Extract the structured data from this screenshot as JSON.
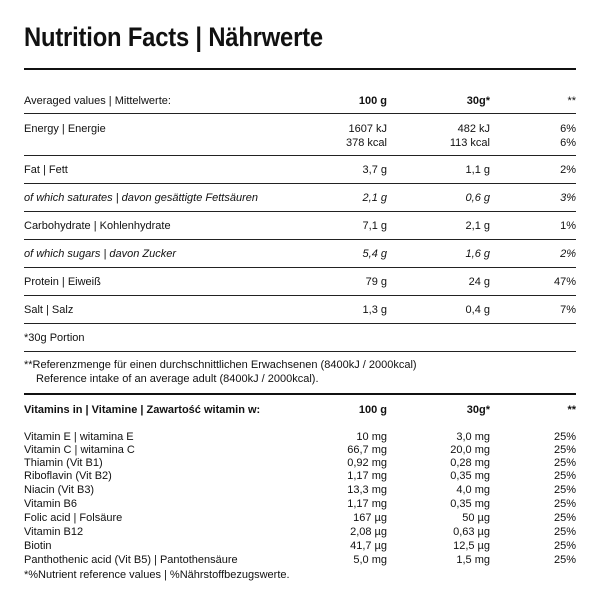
{
  "title": "Nutrition Facts | Nährwerte",
  "header": {
    "label": "Averaged values | Mittelwerte:",
    "col100": "100 g",
    "col30": "30g*",
    "colpct": "**"
  },
  "nutrients": [
    {
      "label": "Energy | Energie",
      "v100": "1607 kJ",
      "v100b": "378 kcal",
      "v30": "482 kJ",
      "v30b": "113 kcal",
      "pct": "6%",
      "pctb": "6%"
    },
    {
      "label": "Fat | Fett",
      "v100": "3,7 g",
      "v30": "1,1 g",
      "pct": "2%"
    },
    {
      "label": "of which saturates | davon gesättigte Fettsäuren",
      "v100": "2,1 g",
      "v30": "0,6 g",
      "pct": "3%"
    },
    {
      "label": "Carbohydrate | Kohlenhydrate",
      "v100": "7,1 g",
      "v30": "2,1 g",
      "pct": "1%"
    },
    {
      "label": "of which sugars | davon Zucker",
      "v100": "5,4 g",
      "v30": "1,6 g",
      "pct": "2%"
    },
    {
      "label": "Protein | Eiweiß",
      "v100": "79 g",
      "v30": "24 g",
      "pct": "47%"
    },
    {
      "label": "Salt | Salz",
      "v100": "1,3 g",
      "v30": "0,4 g",
      "pct": "7%"
    }
  ],
  "portion_note": "*30g Portion",
  "reference_note": {
    "line1": "**Referenzmenge für einen durchschnittlichen Erwachsenen (8400kJ / 2000kcal)",
    "line2": "Reference intake of an average adult (8400kJ / 2000kcal)."
  },
  "vitamins_header": {
    "label": "Vitamins in | Vitamine | Zawartość witamin w:",
    "col100": "100 g",
    "col30": "30g*",
    "colpct": "**"
  },
  "vitamins": [
    {
      "label": "Vitamin E | witamina E",
      "v100": "10 mg",
      "v30": "3,0 mg",
      "pct": "25%"
    },
    {
      "label": "Vitamin C | witamina C",
      "v100": "66,7 mg",
      "v30": "20,0 mg",
      "pct": "25%"
    },
    {
      "label": "Thiamin (Vit B1)",
      "v100": "0,92 mg",
      "v30": "0,28 mg",
      "pct": "25%"
    },
    {
      "label": "Riboflavin (Vit B2)",
      "v100": "1,17 mg",
      "v30": "0,35 mg",
      "pct": "25%"
    },
    {
      "label": "Niacin (Vit B3)",
      "v100": "13,3 mg",
      "v30": "4,0 mg",
      "pct": "25%"
    },
    {
      "label": "Vitamin B6",
      "v100": "1,17 mg",
      "v30": "0,35 mg",
      "pct": "25%"
    },
    {
      "label": "Folic acid | Folsäure",
      "v100": "167 µg",
      "v30": "50 µg",
      "pct": "25%"
    },
    {
      "label": "Vitamin B12",
      "v100": "2,08 µg",
      "v30": "0,63 µg",
      "pct": "25%"
    },
    {
      "label": "Biotin",
      "v100": "41,7 µg",
      "v30": "12,5 µg",
      "pct": "25%"
    },
    {
      "label": "Panthothenic acid (Vit B5) | Pantothensäure",
      "v100": "5,0 mg",
      "v30": "1,5 mg",
      "pct": "25%"
    }
  ],
  "footer_note": "*%Nutrient reference values | %Nährstoffbezugswerte."
}
